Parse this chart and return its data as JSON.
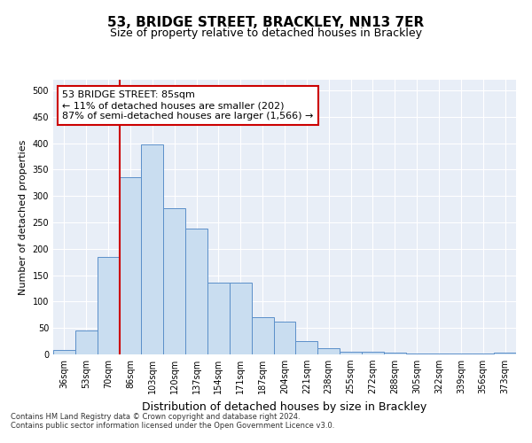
{
  "title": "53, BRIDGE STREET, BRACKLEY, NN13 7ER",
  "subtitle": "Size of property relative to detached houses in Brackley",
  "xlabel": "Distribution of detached houses by size in Brackley",
  "ylabel": "Number of detached properties",
  "categories": [
    "36sqm",
    "53sqm",
    "70sqm",
    "86sqm",
    "103sqm",
    "120sqm",
    "137sqm",
    "154sqm",
    "171sqm",
    "187sqm",
    "204sqm",
    "221sqm",
    "238sqm",
    "255sqm",
    "272sqm",
    "288sqm",
    "305sqm",
    "322sqm",
    "339sqm",
    "356sqm",
    "373sqm"
  ],
  "values": [
    8,
    46,
    185,
    335,
    398,
    276,
    238,
    136,
    136,
    70,
    62,
    25,
    11,
    5,
    5,
    3,
    2,
    1,
    1,
    1,
    3
  ],
  "bar_color": "#c9ddf0",
  "bar_edge_color": "#5b8fc9",
  "marker_color": "#cc0000",
  "annotation_line1": "53 BRIDGE STREET: 85sqm",
  "annotation_line2": "← 11% of detached houses are smaller (202)",
  "annotation_line3": "87% of semi-detached houses are larger (1,566) →",
  "annotation_box_color": "#ffffff",
  "annotation_box_edge_color": "#cc0000",
  "ylim": [
    0,
    520
  ],
  "yticks": [
    0,
    50,
    100,
    150,
    200,
    250,
    300,
    350,
    400,
    450,
    500
  ],
  "background_color": "#e8eef7",
  "footer_text": "Contains HM Land Registry data © Crown copyright and database right 2024.\nContains public sector information licensed under the Open Government Licence v3.0.",
  "title_fontsize": 11,
  "subtitle_fontsize": 9,
  "xlabel_fontsize": 9,
  "ylabel_fontsize": 8,
  "tick_fontsize": 7,
  "annotation_fontsize": 8,
  "footer_fontsize": 6
}
